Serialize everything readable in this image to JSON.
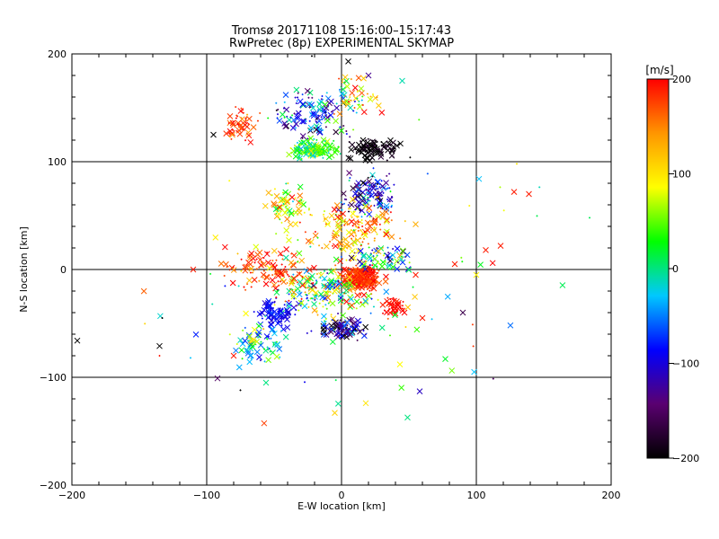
{
  "chart_data": {
    "type": "scatter",
    "title": "Tromsø 20171108 15:16:00–15:17:43",
    "subtitle": "RwPretec (8p) EXPERIMENTAL SKYMAP",
    "xlabel": "E-W location [km]",
    "ylabel": "N-S location [km]",
    "xlim": [
      -200,
      200
    ],
    "ylim": [
      -200,
      200
    ],
    "xticks": [
      -200,
      -100,
      0,
      100,
      200
    ],
    "yticks": [
      -200,
      -100,
      0,
      100,
      200
    ],
    "grid": true,
    "colorbar": {
      "label": "[m/s]",
      "range": [
        -200,
        200
      ],
      "ticks": [
        200,
        100,
        0,
        -100,
        -200
      ],
      "stops": [
        "#000000",
        "#5a0070",
        "#0000ff",
        "#00c8ff",
        "#00ff00",
        "#ffff00",
        "#ff9600",
        "#ff0000"
      ]
    },
    "clusters": [
      {
        "cx": 15,
        "cy": -8,
        "sx": 12,
        "sy": 10,
        "n": 260,
        "v": 185,
        "vs": 25
      },
      {
        "cx": -15,
        "cy": -20,
        "sx": 25,
        "sy": 18,
        "n": 200,
        "v": 40,
        "vs": 140
      },
      {
        "cx": -20,
        "cy": 112,
        "sx": 15,
        "sy": 8,
        "n": 160,
        "v": 30,
        "vs": 60
      },
      {
        "cx": 25,
        "cy": 112,
        "sx": 15,
        "sy": 8,
        "n": 110,
        "v": -195,
        "vs": 25
      },
      {
        "cx": -50,
        "cy": -42,
        "sx": 10,
        "sy": 10,
        "n": 90,
        "v": -90,
        "vs": 20
      },
      {
        "cx": 0,
        "cy": -55,
        "sx": 15,
        "sy": 8,
        "n": 100,
        "v": -130,
        "vs": 90
      },
      {
        "cx": -75,
        "cy": 135,
        "sx": 10,
        "sy": 12,
        "n": 60,
        "v": 180,
        "vs": 40
      },
      {
        "cx": -20,
        "cy": 145,
        "sx": 25,
        "sy": 20,
        "n": 130,
        "v": -80,
        "vs": 110
      },
      {
        "cx": 20,
        "cy": 70,
        "sx": 15,
        "sy": 15,
        "n": 130,
        "v": -100,
        "vs": 100
      },
      {
        "cx": 10,
        "cy": 40,
        "sx": 25,
        "sy": 18,
        "n": 150,
        "v": 140,
        "vs": 70
      },
      {
        "cx": -40,
        "cy": 60,
        "sx": 15,
        "sy": 20,
        "n": 70,
        "v": 90,
        "vs": 90
      },
      {
        "cx": -60,
        "cy": -70,
        "sx": 15,
        "sy": 15,
        "n": 70,
        "v": 0,
        "vs": 80
      },
      {
        "cx": -55,
        "cy": 0,
        "sx": 30,
        "sy": 15,
        "n": 110,
        "v": 180,
        "vs": 50
      },
      {
        "cx": 10,
        "cy": 160,
        "sx": 15,
        "sy": 20,
        "n": 50,
        "v": 100,
        "vs": 120
      },
      {
        "cx": 30,
        "cy": 10,
        "sx": 20,
        "sy": 10,
        "n": 80,
        "v": -20,
        "vs": 130
      },
      {
        "cx": 40,
        "cy": -35,
        "sx": 8,
        "sy": 6,
        "n": 50,
        "v": 195,
        "vs": 15
      },
      {
        "cx": 0,
        "cy": 0,
        "sx": 110,
        "sy": 110,
        "n": 100,
        "v": 50,
        "vs": 140
      }
    ],
    "points": [
      {
        "x": -196,
        "y": -66,
        "v": -200,
        "m": "x"
      },
      {
        "x": -135,
        "y": -71,
        "v": -200,
        "m": "x"
      },
      {
        "x": -110,
        "y": 0,
        "v": 190,
        "m": "x"
      },
      {
        "x": -92,
        "y": -101,
        "v": -150,
        "m": "x"
      },
      {
        "x": -75,
        "y": -112,
        "v": -200,
        "m": "+"
      },
      {
        "x": -56,
        "y": -105,
        "v": 0,
        "m": "x"
      },
      {
        "x": 55,
        "y": -5,
        "v": 190,
        "m": "x"
      },
      {
        "x": 58,
        "y": -113,
        "v": -110,
        "m": "x"
      },
      {
        "x": 60,
        "y": -45,
        "v": 190,
        "m": "x"
      },
      {
        "x": 77,
        "y": -83,
        "v": 20,
        "m": "x"
      },
      {
        "x": 90,
        "y": -40,
        "v": -160,
        "m": "x"
      },
      {
        "x": 84,
        "y": 5,
        "v": 190,
        "m": "x"
      },
      {
        "x": 100,
        "y": -5,
        "v": 90,
        "m": "x"
      },
      {
        "x": 102,
        "y": 84,
        "v": -30,
        "m": "x"
      },
      {
        "x": 107,
        "y": 18,
        "v": 190,
        "m": "x"
      },
      {
        "x": 118,
        "y": 22,
        "v": 190,
        "m": "x"
      },
      {
        "x": 128,
        "y": 72,
        "v": 190,
        "m": "x"
      },
      {
        "x": 130,
        "y": 98,
        "v": 100,
        "m": "+"
      },
      {
        "x": 139,
        "y": 70,
        "v": 190,
        "m": "x"
      },
      {
        "x": 184,
        "y": 48,
        "v": 10,
        "m": "+"
      },
      {
        "x": 18,
        "y": -124,
        "v": 100,
        "m": "x"
      },
      {
        "x": -5,
        "y": -133,
        "v": 110,
        "m": "x"
      },
      {
        "x": -22,
        "y": 198,
        "v": -200,
        "m": "+"
      },
      {
        "x": 5,
        "y": 193,
        "v": -200,
        "m": "x"
      },
      {
        "x": 20,
        "y": 180,
        "v": -130,
        "m": "x"
      },
      {
        "x": 45,
        "y": 175,
        "v": -10,
        "m": "x"
      },
      {
        "x": -95,
        "y": 125,
        "v": -200,
        "m": "x"
      },
      {
        "x": -48,
        "y": 68,
        "v": 130,
        "m": "x"
      },
      {
        "x": 55,
        "y": 42,
        "v": 130,
        "m": "x"
      },
      {
        "x": -80,
        "y": -80,
        "v": 190,
        "m": "x"
      },
      {
        "x": -135,
        "y": -80,
        "v": 190,
        "m": "+"
      },
      {
        "x": -112,
        "y": -82,
        "v": -30,
        "m": "+"
      },
      {
        "x": -133,
        "y": -45,
        "v": -200,
        "m": "+"
      }
    ]
  }
}
